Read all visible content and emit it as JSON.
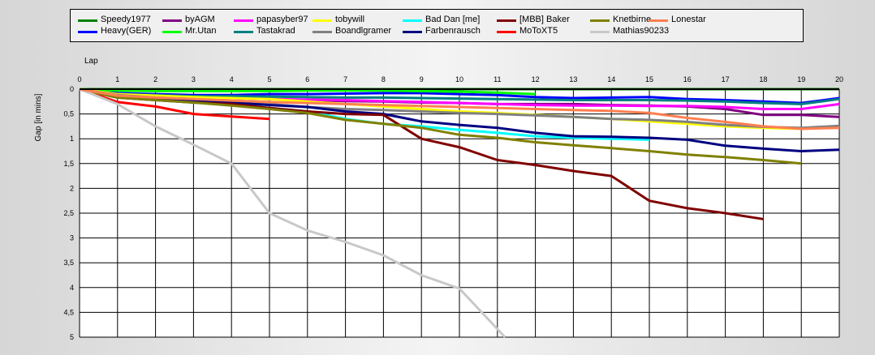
{
  "chart_data": {
    "type": "line",
    "xlabel": "Lap",
    "ylabel": "Gap [in mins]",
    "xlim": [
      0,
      20
    ],
    "ylim": [
      0,
      5
    ],
    "y_inverted": true,
    "grid": true,
    "legend_position": "top",
    "x_ticks": [
      "0",
      "1",
      "2",
      "3",
      "4",
      "5",
      "6",
      "7",
      "8",
      "9",
      "10",
      "11",
      "12",
      "13",
      "14",
      "15",
      "16",
      "17",
      "18",
      "19",
      "20"
    ],
    "y_ticks": [
      "0",
      "0,5",
      "1",
      "1,5",
      "2",
      "2,5",
      "3",
      "3,5",
      "4",
      "4,5",
      "5"
    ],
    "series": [
      {
        "name": "Speedy1977",
        "color": "#008000",
        "x": [
          0,
          1,
          2,
          3,
          4,
          5,
          6,
          7,
          8,
          9,
          10,
          11,
          12,
          13,
          14,
          15,
          16,
          17,
          18,
          19,
          20
        ],
        "y": [
          0,
          0,
          0,
          0,
          0,
          0,
          0,
          0,
          0,
          0,
          0,
          0,
          0,
          0,
          0,
          0,
          0,
          0,
          0,
          0,
          0
        ]
      },
      {
        "name": "Heavy(GER)",
        "color": "#0000ff",
        "x": [
          0,
          1,
          2,
          3,
          4,
          5,
          6,
          7,
          8,
          9,
          10,
          11,
          12,
          13,
          14,
          15,
          16,
          17,
          18,
          19,
          20
        ],
        "y": [
          0,
          0.08,
          0.1,
          0.12,
          0.12,
          0.1,
          0.1,
          0.09,
          0.08,
          0.08,
          0.1,
          0.12,
          0.16,
          0.18,
          0.17,
          0.16,
          0.2,
          0.22,
          0.25,
          0.28,
          0.18
        ]
      },
      {
        "name": "byAGM",
        "color": "#800080",
        "x": [
          0,
          1,
          2,
          3,
          4,
          5,
          6,
          7,
          8,
          9,
          10,
          11,
          12,
          13,
          14,
          15,
          16,
          17,
          18,
          19,
          20
        ],
        "y": [
          0,
          0.13,
          0.15,
          0.17,
          0.18,
          0.2,
          0.22,
          0.24,
          0.25,
          0.27,
          0.28,
          0.3,
          0.3,
          0.3,
          0.32,
          0.33,
          0.35,
          0.4,
          0.52,
          0.52,
          0.56
        ]
      },
      {
        "name": "Mr.Utan",
        "color": "#00ff00",
        "x": [
          0,
          1,
          2,
          3,
          4,
          5,
          6,
          7,
          8,
          9,
          10,
          11,
          12
        ],
        "y": [
          0,
          0.03,
          0.04,
          0.04,
          0.04,
          0.04,
          0.03,
          0.03,
          0.03,
          0.04,
          0.05,
          0.07,
          0.1
        ]
      },
      {
        "name": "papasyber97",
        "color": "#ff00ff",
        "x": [
          0,
          1,
          2,
          3,
          4,
          5,
          6,
          7,
          8,
          9,
          10,
          11,
          12,
          13,
          14,
          15,
          16,
          17,
          18,
          19,
          20
        ],
        "y": [
          0,
          0.12,
          0.14,
          0.16,
          0.18,
          0.2,
          0.21,
          0.22,
          0.24,
          0.26,
          0.28,
          0.3,
          0.32,
          0.33,
          0.33,
          0.34,
          0.34,
          0.36,
          0.4,
          0.4,
          0.3
        ]
      },
      {
        "name": "Tastakrad",
        "color": "#008080",
        "x": [
          0,
          1,
          2,
          3,
          4,
          5,
          6,
          7,
          8,
          9,
          10,
          11,
          12,
          13,
          14,
          15,
          16,
          17,
          18,
          19,
          20
        ],
        "y": [
          0,
          0.1,
          0.12,
          0.14,
          0.14,
          0.15,
          0.16,
          0.17,
          0.17,
          0.18,
          0.19,
          0.2,
          0.21,
          0.22,
          0.22,
          0.22,
          0.23,
          0.25,
          0.28,
          0.3,
          0.2
        ]
      },
      {
        "name": "tobywill",
        "color": "#ffff00",
        "x": [
          0,
          1,
          2,
          3,
          4,
          5,
          6,
          7,
          8,
          9,
          10,
          11,
          12,
          13,
          14,
          15,
          16,
          17,
          18,
          19,
          20
        ],
        "y": [
          0,
          0.1,
          0.13,
          0.16,
          0.18,
          0.2,
          0.25,
          0.3,
          0.35,
          0.4,
          0.45,
          0.48,
          0.52,
          0.56,
          0.6,
          0.65,
          0.7,
          0.75,
          0.78,
          0.8,
          0.76
        ]
      },
      {
        "name": "Boandlgramer",
        "color": "#808080",
        "x": [
          0,
          1,
          2,
          3,
          4,
          5,
          6,
          7,
          8,
          9,
          10,
          11,
          12,
          13,
          14,
          15,
          16,
          17,
          18,
          19,
          20
        ],
        "y": [
          0,
          0.12,
          0.17,
          0.2,
          0.24,
          0.3,
          0.36,
          0.4,
          0.42,
          0.45,
          0.48,
          0.5,
          0.53,
          0.56,
          0.6,
          0.62,
          0.66,
          0.72,
          0.76,
          0.78,
          0.74
        ]
      },
      {
        "name": "Bad Dan [me]",
        "color": "#00ffff",
        "x": [
          0,
          1,
          2,
          3,
          4,
          5,
          6,
          7,
          8,
          9,
          10,
          11,
          12,
          13,
          14,
          15
        ],
        "y": [
          0,
          0.17,
          0.22,
          0.27,
          0.3,
          0.38,
          0.45,
          0.6,
          0.7,
          0.75,
          0.82,
          0.88,
          0.95,
          0.98,
          1.0,
          1.02
        ]
      },
      {
        "name": "Farbenrausch",
        "color": "#000080",
        "x": [
          0,
          1,
          2,
          3,
          4,
          5,
          6,
          7,
          8,
          9,
          10,
          11,
          12,
          13,
          14,
          15,
          16,
          17,
          18,
          19,
          20
        ],
        "y": [
          0,
          0.17,
          0.2,
          0.24,
          0.27,
          0.32,
          0.36,
          0.45,
          0.5,
          0.65,
          0.72,
          0.78,
          0.88,
          0.95,
          0.96,
          0.98,
          1.02,
          1.14,
          1.2,
          1.25,
          1.22
        ]
      },
      {
        "name": "[MBB] Baker",
        "color": "#800000",
        "x": [
          0,
          1,
          2,
          3,
          4,
          5,
          6,
          7,
          8,
          9,
          10,
          11,
          12,
          13,
          14,
          15,
          16,
          17,
          18
        ],
        "y": [
          0,
          0.17,
          0.22,
          0.27,
          0.3,
          0.38,
          0.45,
          0.5,
          0.52,
          1.0,
          1.17,
          1.43,
          1.53,
          1.65,
          1.75,
          2.25,
          2.4,
          2.5,
          2.62
        ]
      },
      {
        "name": "MoToXT5",
        "color": "#ff0000",
        "x": [
          0,
          1,
          2,
          3,
          4,
          5
        ],
        "y": [
          0,
          0.26,
          0.35,
          0.5,
          0.55,
          0.6
        ]
      },
      {
        "name": "Knetbirne",
        "color": "#808000",
        "x": [
          0,
          1,
          2,
          3,
          4,
          5,
          6,
          7,
          8,
          9,
          10,
          11,
          12,
          13,
          14,
          15,
          16,
          17,
          18,
          19
        ],
        "y": [
          0,
          0.17,
          0.22,
          0.27,
          0.33,
          0.4,
          0.48,
          0.62,
          0.7,
          0.78,
          0.92,
          0.98,
          1.07,
          1.13,
          1.19,
          1.25,
          1.32,
          1.37,
          1.43,
          1.5
        ]
      },
      {
        "name": "Mathias90233",
        "color": "#c8c8c8",
        "x": [
          0,
          1,
          2,
          3,
          4,
          5,
          6,
          7,
          8,
          9,
          10,
          11.2
        ],
        "y": [
          0,
          0.3,
          0.75,
          1.12,
          1.5,
          2.5,
          2.85,
          3.08,
          3.35,
          3.75,
          4.02,
          5.0
        ]
      },
      {
        "name": "Lonestar",
        "color": "#ff7f50",
        "x": [
          0,
          1,
          2,
          3,
          4,
          5,
          6,
          7,
          8,
          9,
          10,
          11,
          12,
          13,
          14,
          15,
          16,
          17,
          18,
          19,
          20
        ],
        "y": [
          0,
          0.13,
          0.17,
          0.2,
          0.23,
          0.26,
          0.28,
          0.3,
          0.32,
          0.34,
          0.36,
          0.38,
          0.4,
          0.42,
          0.44,
          0.48,
          0.58,
          0.66,
          0.75,
          0.8,
          0.78
        ]
      }
    ]
  }
}
